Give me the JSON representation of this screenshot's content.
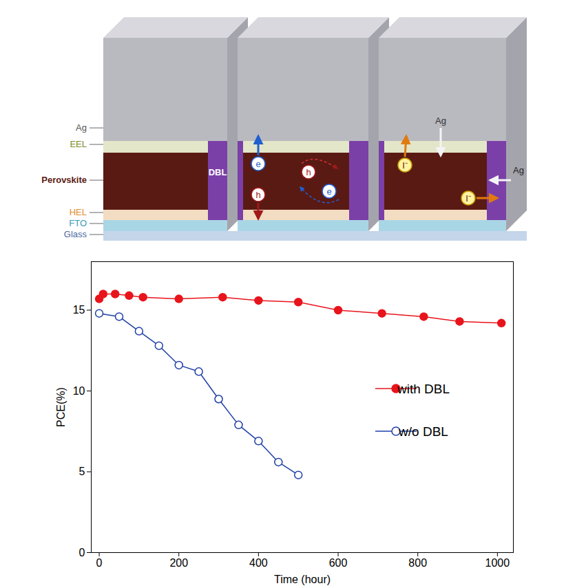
{
  "chart_data": {
    "type": "line",
    "x_label": "Time (hour)",
    "y_label": "PCE(%)",
    "xlim": [
      -20,
      1040
    ],
    "ylim": [
      0,
      18
    ],
    "xticks": [
      0,
      200,
      400,
      600,
      800,
      1000
    ],
    "yticks": [
      0,
      5,
      10,
      15
    ],
    "legend": "right",
    "series": [
      {
        "name": "with DBL",
        "color": "#e8141c",
        "marker": "circle",
        "x": [
          0,
          10,
          40,
          75,
          110,
          200,
          310,
          400,
          500,
          600,
          710,
          815,
          905,
          1010
        ],
        "values": [
          15.7,
          16.0,
          16.0,
          15.9,
          15.8,
          15.7,
          15.8,
          15.6,
          15.5,
          15.0,
          14.8,
          14.6,
          14.3,
          14.2
        ]
      },
      {
        "name": "w/o DBL",
        "color": "#1f3fa6",
        "marker": "open circle",
        "x": [
          0,
          50,
          100,
          150,
          200,
          250,
          300,
          350,
          400,
          450,
          500
        ],
        "values": [
          14.8,
          14.6,
          13.7,
          12.8,
          11.6,
          11.2,
          9.5,
          7.9,
          6.9,
          5.6,
          4.8
        ]
      }
    ]
  },
  "diagram": {
    "layers": [
      "Ag",
      "EEL",
      "Perovskite",
      "HEL",
      "FTO",
      "Glass"
    ],
    "barrier": "DBL",
    "electron": "e",
    "hole": "h",
    "ion": "I⁻",
    "metal": "Ag"
  }
}
